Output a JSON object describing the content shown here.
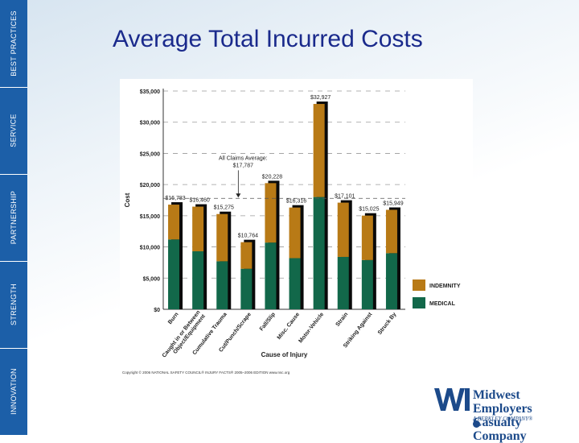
{
  "sidebar": {
    "items": [
      "BEST PRACTICES",
      "SERVICE",
      "PARTNERSHIP",
      "STRENGTH",
      "INNOVATION"
    ]
  },
  "slide": {
    "title": "Average Total Incurred Costs"
  },
  "chart_data": {
    "type": "bar",
    "stacked": true,
    "title": "",
    "xlabel": "Cause of Injury",
    "ylabel": "Cost",
    "ylim": [
      0,
      35000
    ],
    "yticks": [
      "$0",
      "$5,000",
      "$10,000",
      "$15,000",
      "$20,000",
      "$25,000",
      "$30,000",
      "$35,000"
    ],
    "grid": "dashed horizontal",
    "legend_position": "right-bottom",
    "categories": [
      "Burn",
      "Caught in or Between Object/Equipment",
      "Cumulative Trauma",
      "Cut/Punch/Scrape",
      "Fall/Slip",
      "Misc. Cause",
      "Motor-Vehicle",
      "Strain",
      "Striking Against",
      "Struck By"
    ],
    "category_lines": [
      [
        "Burn"
      ],
      [
        "Caught in or Between",
        "Object/Equipment"
      ],
      [
        "Cumulative Trauma"
      ],
      [
        "Cut/Punch/Scrape"
      ],
      [
        "Fall/Slip"
      ],
      [
        "Misc. Cause"
      ],
      [
        "Motor-Vehicle"
      ],
      [
        "Strain"
      ],
      [
        "Striking Against"
      ],
      [
        "Struck By"
      ]
    ],
    "series": [
      {
        "name": "MEDICAL",
        "color": "#12684a",
        "values": [
          11200,
          9300,
          7700,
          6500,
          10700,
          8200,
          18000,
          8400,
          7900,
          9000
        ]
      },
      {
        "name": "INDEMNITY",
        "color": "#b87a16",
        "values": [
          5583,
          7160,
          7575,
          4264,
          9528,
          8116,
          14927,
          8701,
          7125,
          6949
        ]
      }
    ],
    "totals": [
      16783,
      16460,
      15275,
      10764,
      20228,
      16316,
      32927,
      17101,
      15025,
      15949
    ],
    "total_labels": [
      "$16,783",
      "$16,460",
      "$15,275",
      "$10,764",
      "$20,228",
      "$16,316",
      "$32,927",
      "$17,101",
      "$15,025",
      "$15,949"
    ],
    "average": {
      "value": 17787,
      "label_line1": "All Claims Average:",
      "label_line2": "$17,787"
    },
    "footnote": "Copyright © 2006   NATIONAL SAFETY COUNCIL®   INJURY FACTS® 2005–2006 EDITION   www.nsc.org",
    "colors": {
      "medical": "#12684a",
      "indemnity": "#b87a16",
      "shadow": "#0a0a0a"
    }
  },
  "logo": {
    "name_line1": "Midwest Employers",
    "name_line2": "Casualty Company",
    "subtitle": "A BERKLEY COMPANY®",
    "color": "#1c4a8a"
  }
}
